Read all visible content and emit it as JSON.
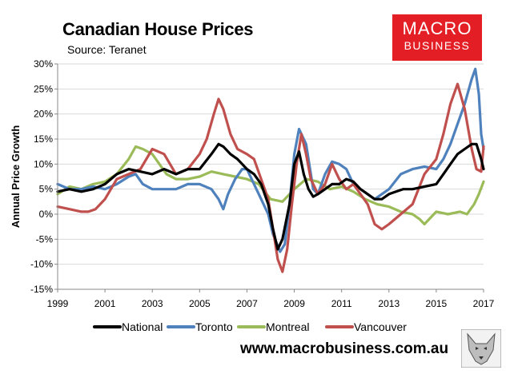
{
  "header": {
    "title": "Canadian House Prices",
    "subtitle": "Source: Teranet"
  },
  "logo": {
    "line1": "MACRO",
    "line2": "BUSINESS"
  },
  "footer": {
    "website": "www.macrobusiness.com.au"
  },
  "chart_data": {
    "type": "line",
    "title": "Canadian House Prices",
    "subtitle": "Source: Teranet",
    "xlabel": "",
    "ylabel": "Annual Price Growth",
    "xlim": [
      1999,
      2017
    ],
    "ylim": [
      -15,
      30
    ],
    "x_ticks": [
      "1999",
      "2001",
      "2003",
      "2005",
      "2007",
      "2009",
      "2011",
      "2013",
      "2015",
      "2017"
    ],
    "y_ticks": [
      "30%",
      "25%",
      "20%",
      "15%",
      "10%",
      "5%",
      "0%",
      "-5%",
      "-10%",
      "-15%"
    ],
    "grid": true,
    "legend_position": "bottom",
    "series": [
      {
        "name": "National",
        "color": "#000000",
        "x": [
          1999.0,
          1999.5,
          2000.0,
          2000.5,
          2001.0,
          2001.5,
          2002.0,
          2002.5,
          2003.0,
          2003.5,
          2004.0,
          2004.5,
          2005.0,
          2005.5,
          2005.8,
          2006.0,
          2006.3,
          2006.6,
          2006.8,
          2007.0,
          2007.3,
          2007.6,
          2007.9,
          2008.1,
          2008.3,
          2008.5,
          2008.8,
          2009.0,
          2009.2,
          2009.4,
          2009.6,
          2009.8,
          2010.0,
          2010.3,
          2010.6,
          2010.9,
          2011.2,
          2011.5,
          2011.8,
          2012.1,
          2012.4,
          2012.7,
          2013.0,
          2013.3,
          2013.6,
          2014.0,
          2014.5,
          2015.0,
          2015.3,
          2015.6,
          2015.9,
          2016.2,
          2016.5,
          2016.7,
          2016.9,
          2017.0
        ],
        "values": [
          4.5,
          5.0,
          4.5,
          5.0,
          6.0,
          8.0,
          9.0,
          8.5,
          8.0,
          9.0,
          8.0,
          9.0,
          9.0,
          12.0,
          14.0,
          13.5,
          12.0,
          11.0,
          10.0,
          9.0,
          8.0,
          6.0,
          2.0,
          -3.0,
          -7.0,
          -5.0,
          2.0,
          10.0,
          12.5,
          8.0,
          5.0,
          3.5,
          4.0,
          5.0,
          6.0,
          6.0,
          7.0,
          6.5,
          5.0,
          4.0,
          3.0,
          3.0,
          4.0,
          4.5,
          5.0,
          5.0,
          5.5,
          6.0,
          8.0,
          10.0,
          12.0,
          13.0,
          14.0,
          14.0,
          11.0,
          9.0
        ]
      },
      {
        "name": "Toronto",
        "color": "#4f81bd",
        "x": [
          1999.0,
          1999.5,
          2000.0,
          2000.5,
          2001.0,
          2001.5,
          2002.0,
          2002.3,
          2002.6,
          2003.0,
          2003.5,
          2004.0,
          2004.5,
          2005.0,
          2005.5,
          2005.8,
          2006.0,
          2006.2,
          2006.5,
          2006.8,
          2007.0,
          2007.3,
          2007.6,
          2007.9,
          2008.1,
          2008.4,
          2008.6,
          2008.8,
          2009.0,
          2009.2,
          2009.5,
          2009.8,
          2010.0,
          2010.3,
          2010.6,
          2010.9,
          2011.2,
          2011.5,
          2011.8,
          2012.1,
          2012.4,
          2012.7,
          2013.0,
          2013.5,
          2014.0,
          2014.5,
          2015.0,
          2015.3,
          2015.6,
          2015.9,
          2016.2,
          2016.5,
          2016.65,
          2016.8,
          2016.9,
          2017.0
        ],
        "values": [
          6.0,
          5.0,
          5.0,
          5.5,
          5.0,
          6.0,
          7.5,
          8.0,
          6.0,
          5.0,
          5.0,
          5.0,
          6.0,
          6.0,
          5.0,
          3.0,
          1.0,
          4.0,
          7.0,
          9.0,
          9.0,
          6.0,
          3.0,
          0.0,
          -4.0,
          -7.5,
          -6.0,
          2.0,
          12.0,
          17.0,
          14.0,
          5.0,
          4.0,
          8.0,
          10.5,
          10.0,
          9.0,
          6.0,
          5.0,
          4.0,
          3.0,
          4.0,
          5.0,
          8.0,
          9.0,
          9.5,
          9.0,
          11.0,
          14.0,
          18.0,
          22.0,
          27.0,
          29.0,
          24.0,
          16.0,
          13.0
        ]
      },
      {
        "name": "Montreal",
        "color": "#9bbb59",
        "x": [
          1999.0,
          1999.5,
          2000.0,
          2000.5,
          2001.0,
          2001.5,
          2002.0,
          2002.3,
          2002.6,
          2003.0,
          2003.3,
          2003.6,
          2004.0,
          2004.5,
          2005.0,
          2005.5,
          2006.0,
          2006.5,
          2007.0,
          2007.5,
          2008.0,
          2008.5,
          2009.0,
          2009.5,
          2010.0,
          2010.5,
          2011.0,
          2011.5,
          2012.0,
          2012.5,
          2013.0,
          2013.5,
          2014.0,
          2014.3,
          2014.5,
          2015.0,
          2015.5,
          2016.0,
          2016.3,
          2016.6,
          2016.8,
          2017.0
        ],
        "values": [
          4.0,
          5.5,
          5.0,
          6.0,
          6.5,
          8.0,
          11.0,
          13.5,
          13.0,
          12.0,
          10.0,
          8.0,
          7.0,
          7.0,
          7.5,
          8.5,
          8.0,
          7.5,
          7.0,
          6.0,
          3.0,
          2.5,
          5.0,
          7.0,
          6.5,
          5.0,
          5.5,
          4.5,
          3.0,
          2.0,
          1.5,
          0.5,
          0.0,
          -1.0,
          -2.0,
          0.5,
          0.0,
          0.5,
          0.0,
          2.0,
          4.0,
          6.5
        ]
      },
      {
        "name": "Vancouver",
        "color": "#c0504d",
        "x": [
          1999.0,
          1999.5,
          2000.0,
          2000.3,
          2000.6,
          2001.0,
          2001.5,
          2002.0,
          2002.5,
          2003.0,
          2003.5,
          2004.0,
          2004.5,
          2005.0,
          2005.3,
          2005.6,
          2005.8,
          2006.0,
          2006.3,
          2006.6,
          2007.0,
          2007.3,
          2007.6,
          2007.9,
          2008.1,
          2008.3,
          2008.5,
          2008.7,
          2008.9,
          2009.1,
          2009.3,
          2009.5,
          2009.7,
          2010.0,
          2010.3,
          2010.6,
          2010.9,
          2011.2,
          2011.5,
          2011.8,
          2012.1,
          2012.4,
          2012.7,
          2013.0,
          2013.5,
          2014.0,
          2014.5,
          2015.0,
          2015.3,
          2015.6,
          2015.9,
          2016.2,
          2016.5,
          2016.7,
          2016.9,
          2017.0
        ],
        "values": [
          1.5,
          1.0,
          0.5,
          0.5,
          1.0,
          3.0,
          7.0,
          8.0,
          9.0,
          13.0,
          12.0,
          8.0,
          9.0,
          12.0,
          15.0,
          20.0,
          23.0,
          21.0,
          16.0,
          13.0,
          12.0,
          11.0,
          7.0,
          3.0,
          -3.0,
          -9.0,
          -11.5,
          -7.0,
          2.0,
          10.0,
          16.0,
          12.0,
          7.0,
          4.0,
          6.0,
          10.0,
          7.0,
          5.0,
          6.0,
          4.0,
          2.0,
          -2.0,
          -3.0,
          -2.0,
          0.0,
          2.0,
          8.0,
          11.0,
          16.0,
          22.0,
          26.0,
          21.0,
          13.0,
          9.0,
          8.5,
          13.5
        ]
      }
    ]
  }
}
